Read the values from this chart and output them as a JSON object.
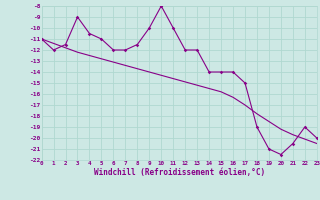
{
  "xlabel": "Windchill (Refroidissement éolien,°C)",
  "background_color": "#cde8e4",
  "grid_color": "#b0d8d0",
  "line_color": "#880088",
  "hours": [
    0,
    1,
    2,
    3,
    4,
    5,
    6,
    7,
    8,
    9,
    10,
    11,
    12,
    13,
    14,
    15,
    16,
    17,
    18,
    19,
    20,
    21,
    22,
    23
  ],
  "windchill": [
    -11,
    -12,
    -11.5,
    -9,
    -10.5,
    -11,
    -12,
    -12,
    -11.5,
    -10,
    -8,
    -10,
    -12,
    -12,
    -14,
    -14,
    -14,
    -15,
    -19,
    -21,
    -21.5,
    -20.5,
    -19,
    -20
  ],
  "trend": [
    -11,
    -11.4,
    -11.8,
    -12.2,
    -12.5,
    -12.8,
    -13.1,
    -13.4,
    -13.7,
    -14.0,
    -14.3,
    -14.6,
    -14.9,
    -15.2,
    -15.5,
    -15.8,
    -16.3,
    -17.0,
    -17.8,
    -18.5,
    -19.2,
    -19.7,
    -20.1,
    -20.5
  ],
  "xlim": [
    0,
    23
  ],
  "ylim": [
    -22,
    -8
  ],
  "yticks": [
    -22,
    -21,
    -20,
    -19,
    -18,
    -17,
    -16,
    -15,
    -14,
    -13,
    -12,
    -11,
    -10,
    -9,
    -8
  ],
  "xticks": [
    0,
    1,
    2,
    3,
    4,
    5,
    6,
    7,
    8,
    9,
    10,
    11,
    12,
    13,
    14,
    15,
    16,
    17,
    18,
    19,
    20,
    21,
    22,
    23
  ]
}
